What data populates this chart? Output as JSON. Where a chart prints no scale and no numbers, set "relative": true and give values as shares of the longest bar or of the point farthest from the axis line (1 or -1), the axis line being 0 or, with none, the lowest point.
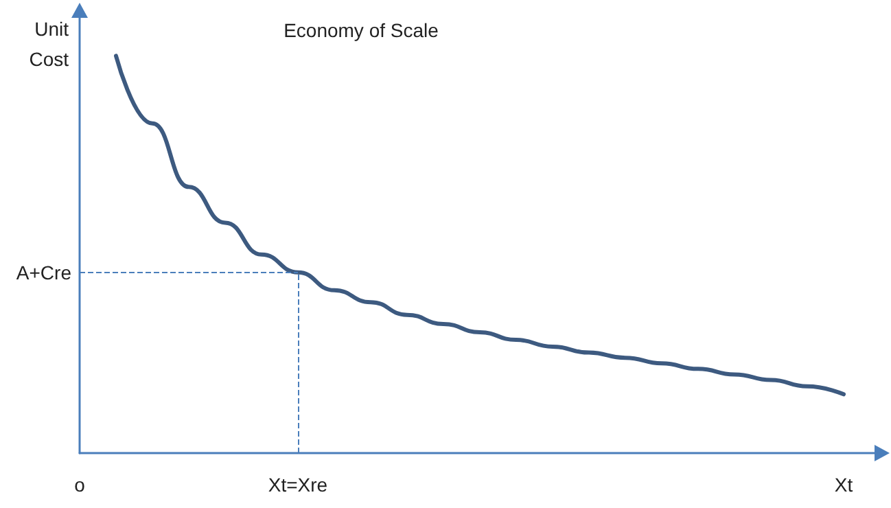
{
  "chart_data": {
    "type": "line",
    "title": "Economy of Scale",
    "ylabel": "Unit\nCost",
    "relative": true,
    "categories": [
      "o",
      null,
      null,
      null,
      null,
      null,
      "Xt=Xre",
      null,
      null,
      null,
      null,
      null,
      null,
      null,
      null,
      null,
      null,
      null,
      null,
      null,
      null,
      "Xt",
      null
    ],
    "series": [
      {
        "color": "#3d5a80",
        "values": [
          null,
          1,
          0.83,
          0.67,
          0.58,
          0.5,
          0.455,
          0.41,
          0.38,
          0.348,
          0.325,
          0.304,
          0.285,
          0.268,
          0.253,
          0.24,
          0.226,
          0.212,
          0.198,
          0.184,
          0.168,
          0.148,
          null
        ]
      }
    ],
    "ref_lines": [
      {
        "axis": "x",
        "value": "Xt=Xre",
        "color": "#4a7ebb",
        "line_style": "dashed"
      },
      {
        "axis": "y",
        "value": 0.455,
        "label": "A+Cre",
        "color": "#4a7ebb",
        "line_style": "dashed"
      }
    ],
    "grid": false,
    "marker": "none",
    "line_style": "solid"
  }
}
